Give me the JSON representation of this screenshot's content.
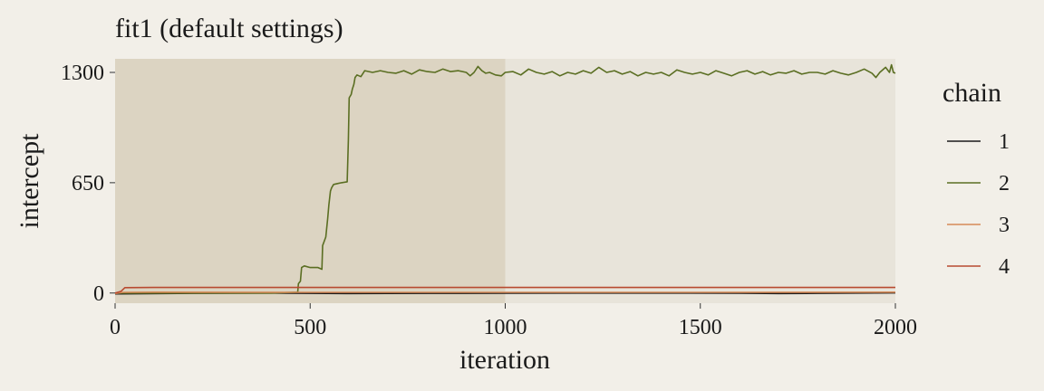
{
  "chart_data": {
    "type": "line",
    "title": "fit1 (default settings)",
    "xlabel": "iteration",
    "ylabel": "intercept",
    "xlim": [
      0,
      2000
    ],
    "ylim": [
      -60,
      1380
    ],
    "x_ticks": [
      0,
      500,
      1000,
      1500,
      2000
    ],
    "x_tick_labels": [
      "0",
      "500",
      "1000",
      "1500",
      "2000"
    ],
    "y_ticks": [
      0,
      650,
      1300
    ],
    "y_tick_labels": [
      "0",
      "650",
      "1300"
    ],
    "warmup_shaded_range": [
      0,
      1000
    ],
    "legend": {
      "title": "chain",
      "position": "right"
    },
    "series": [
      {
        "name": "1",
        "color": "#1a1a1a",
        "points": [
          [
            0,
            -5
          ],
          [
            200,
            -2
          ],
          [
            400,
            0
          ],
          [
            600,
            -3
          ],
          [
            800,
            -2
          ],
          [
            1000,
            -1
          ],
          [
            1200,
            0
          ],
          [
            1400,
            0
          ],
          [
            1600,
            -1
          ],
          [
            1700,
            -3
          ],
          [
            1800,
            -2
          ],
          [
            2000,
            1
          ]
        ]
      },
      {
        "name": "2",
        "color": "#5a6e22",
        "points": [
          [
            0,
            0
          ],
          [
            400,
            0
          ],
          [
            468,
            5
          ],
          [
            470,
            55
          ],
          [
            475,
            70
          ],
          [
            478,
            150
          ],
          [
            485,
            160
          ],
          [
            500,
            150
          ],
          [
            520,
            150
          ],
          [
            530,
            140
          ],
          [
            532,
            280
          ],
          [
            540,
            330
          ],
          [
            545,
            440
          ],
          [
            548,
            520
          ],
          [
            552,
            600
          ],
          [
            555,
            620
          ],
          [
            560,
            640
          ],
          [
            570,
            645
          ],
          [
            580,
            650
          ],
          [
            595,
            655
          ],
          [
            598,
            900
          ],
          [
            600,
            1150
          ],
          [
            605,
            1170
          ],
          [
            608,
            1200
          ],
          [
            612,
            1230
          ],
          [
            615,
            1270
          ],
          [
            620,
            1285
          ],
          [
            630,
            1275
          ],
          [
            640,
            1310
          ],
          [
            660,
            1300
          ],
          [
            680,
            1310
          ],
          [
            700,
            1300
          ],
          [
            720,
            1295
          ],
          [
            740,
            1310
          ],
          [
            760,
            1290
          ],
          [
            780,
            1315
          ],
          [
            800,
            1305
          ],
          [
            820,
            1300
          ],
          [
            840,
            1320
          ],
          [
            860,
            1305
          ],
          [
            880,
            1310
          ],
          [
            900,
            1300
          ],
          [
            910,
            1280
          ],
          [
            920,
            1300
          ],
          [
            930,
            1335
          ],
          [
            940,
            1310
          ],
          [
            950,
            1295
          ],
          [
            960,
            1300
          ],
          [
            975,
            1285
          ],
          [
            990,
            1280
          ],
          [
            1000,
            1300
          ],
          [
            1020,
            1305
          ],
          [
            1040,
            1285
          ],
          [
            1060,
            1320
          ],
          [
            1080,
            1300
          ],
          [
            1100,
            1290
          ],
          [
            1120,
            1305
          ],
          [
            1140,
            1280
          ],
          [
            1160,
            1300
          ],
          [
            1180,
            1290
          ],
          [
            1200,
            1310
          ],
          [
            1220,
            1295
          ],
          [
            1240,
            1330
          ],
          [
            1260,
            1300
          ],
          [
            1280,
            1310
          ],
          [
            1300,
            1290
          ],
          [
            1320,
            1305
          ],
          [
            1340,
            1280
          ],
          [
            1360,
            1300
          ],
          [
            1380,
            1290
          ],
          [
            1400,
            1300
          ],
          [
            1420,
            1280
          ],
          [
            1440,
            1315
          ],
          [
            1460,
            1300
          ],
          [
            1480,
            1290
          ],
          [
            1500,
            1300
          ],
          [
            1520,
            1285
          ],
          [
            1540,
            1310
          ],
          [
            1560,
            1295
          ],
          [
            1580,
            1280
          ],
          [
            1600,
            1300
          ],
          [
            1620,
            1310
          ],
          [
            1640,
            1290
          ],
          [
            1660,
            1305
          ],
          [
            1680,
            1285
          ],
          [
            1700,
            1300
          ],
          [
            1720,
            1295
          ],
          [
            1740,
            1310
          ],
          [
            1760,
            1290
          ],
          [
            1780,
            1300
          ],
          [
            1800,
            1300
          ],
          [
            1820,
            1290
          ],
          [
            1840,
            1310
          ],
          [
            1860,
            1295
          ],
          [
            1880,
            1285
          ],
          [
            1900,
            1300
          ],
          [
            1920,
            1320
          ],
          [
            1940,
            1295
          ],
          [
            1950,
            1270
          ],
          [
            1960,
            1300
          ],
          [
            1975,
            1330
          ],
          [
            1985,
            1300
          ],
          [
            1990,
            1345
          ],
          [
            1995,
            1300
          ],
          [
            2000,
            1295
          ]
        ]
      },
      {
        "name": "3",
        "color": "#d68a57",
        "points": [
          [
            0,
            -3
          ],
          [
            20,
            4
          ],
          [
            100,
            5
          ],
          [
            500,
            4
          ],
          [
            1000,
            4
          ],
          [
            1500,
            4
          ],
          [
            2000,
            5
          ]
        ]
      },
      {
        "name": "4",
        "color": "#b84a30",
        "points": [
          [
            0,
            0
          ],
          [
            15,
            10
          ],
          [
            25,
            32
          ],
          [
            100,
            33
          ],
          [
            500,
            33
          ],
          [
            1000,
            33
          ],
          [
            1500,
            33
          ],
          [
            2000,
            33
          ]
        ]
      }
    ]
  }
}
